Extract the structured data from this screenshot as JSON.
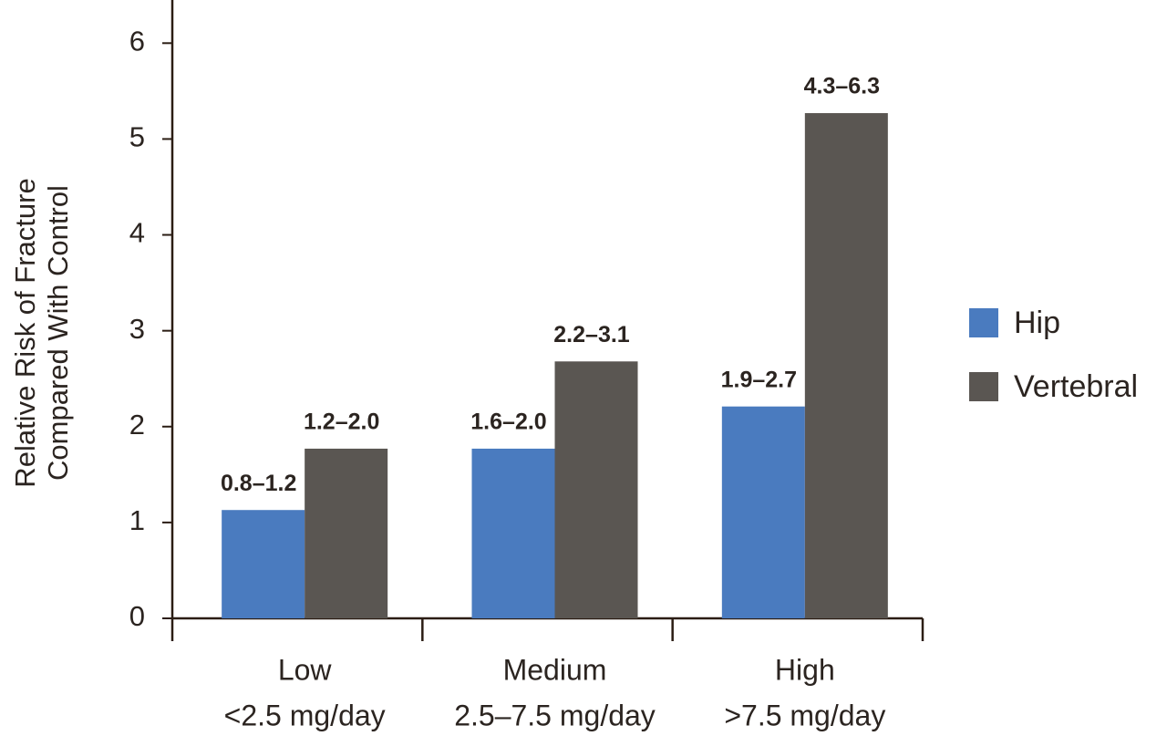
{
  "chart_data": {
    "type": "bar",
    "ylabel": [
      "Relative Risk of Fracture",
      "Compared With Control"
    ],
    "categories": [
      [
        "Low",
        "<2.5 mg/day"
      ],
      [
        "Medium",
        "2.5–7.5 mg/day"
      ],
      [
        "High",
        ">7.5 mg/day"
      ]
    ],
    "series": [
      {
        "name": "Hip",
        "color": "#4a7bbf",
        "values": [
          1.13,
          1.77,
          2.21
        ],
        "ranges": [
          "0.8–1.2",
          "1.6–2.0",
          "1.9–2.7"
        ]
      },
      {
        "name": "Vertebral",
        "color": "#5a5652",
        "values": [
          1.77,
          2.68,
          5.27
        ],
        "ranges": [
          "1.2–2.0",
          "2.2–3.1",
          "4.3–6.3"
        ]
      }
    ],
    "ylim": [
      0,
      6.45
    ],
    "yticks": [
      0,
      1,
      2,
      3,
      4,
      5,
      6
    ],
    "grid": false,
    "legend": "right"
  }
}
